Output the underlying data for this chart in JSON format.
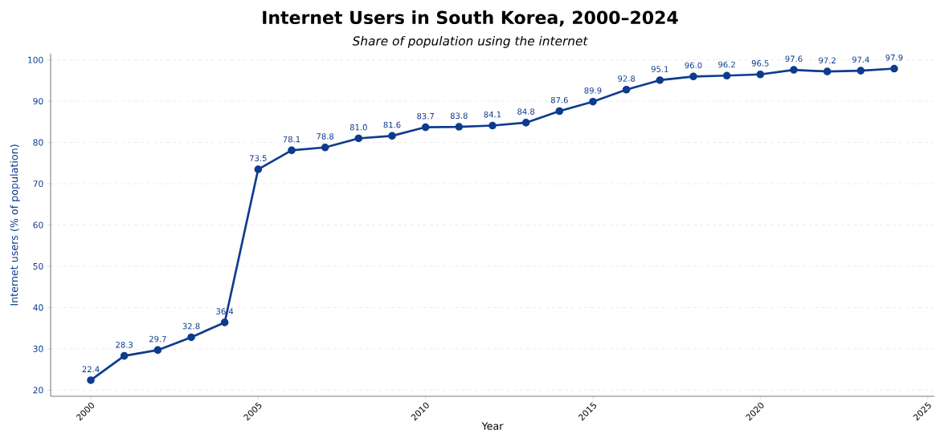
{
  "chart_data": {
    "type": "line",
    "title": "Internet Users in South Korea, 2000–2024",
    "subtitle": "Share of population using the internet",
    "xlabel": "Year",
    "ylabel": "Internet users (% of population)",
    "x": [
      2000,
      2001,
      2002,
      2003,
      2004,
      2005,
      2006,
      2007,
      2008,
      2009,
      2010,
      2011,
      2012,
      2013,
      2014,
      2015,
      2016,
      2017,
      2018,
      2019,
      2020,
      2021,
      2022,
      2023,
      2024
    ],
    "values": [
      22.4,
      28.3,
      29.7,
      32.8,
      36.4,
      73.5,
      78.1,
      78.8,
      81.0,
      81.6,
      83.7,
      83.8,
      84.1,
      84.8,
      87.6,
      89.9,
      92.8,
      95.1,
      96.0,
      96.2,
      96.5,
      97.6,
      97.2,
      97.4,
      97.9
    ],
    "value_labels": [
      "22.4",
      "28.3",
      "29.7",
      "32.8",
      "36.4",
      "73.5",
      "78.1",
      "78.8",
      "81.0",
      "81.6",
      "83.7",
      "83.8",
      "84.1",
      "84.8",
      "87.6",
      "89.9",
      "92.8",
      "95.1",
      "96.0",
      "96.2",
      "96.5",
      "97.6",
      "97.2",
      "97.4",
      "97.9"
    ],
    "color": "#0d3b8e",
    "marker": "circle",
    "line_style": "solid",
    "grid": "y",
    "xlim": [
      1998.8,
      2025.2
    ],
    "ylim": [
      18.5,
      101.5
    ],
    "xticks": [
      2000,
      2005,
      2010,
      2015,
      2020,
      2025
    ],
    "yticks": [
      20,
      30,
      40,
      50,
      60,
      70,
      80,
      90,
      100
    ]
  }
}
